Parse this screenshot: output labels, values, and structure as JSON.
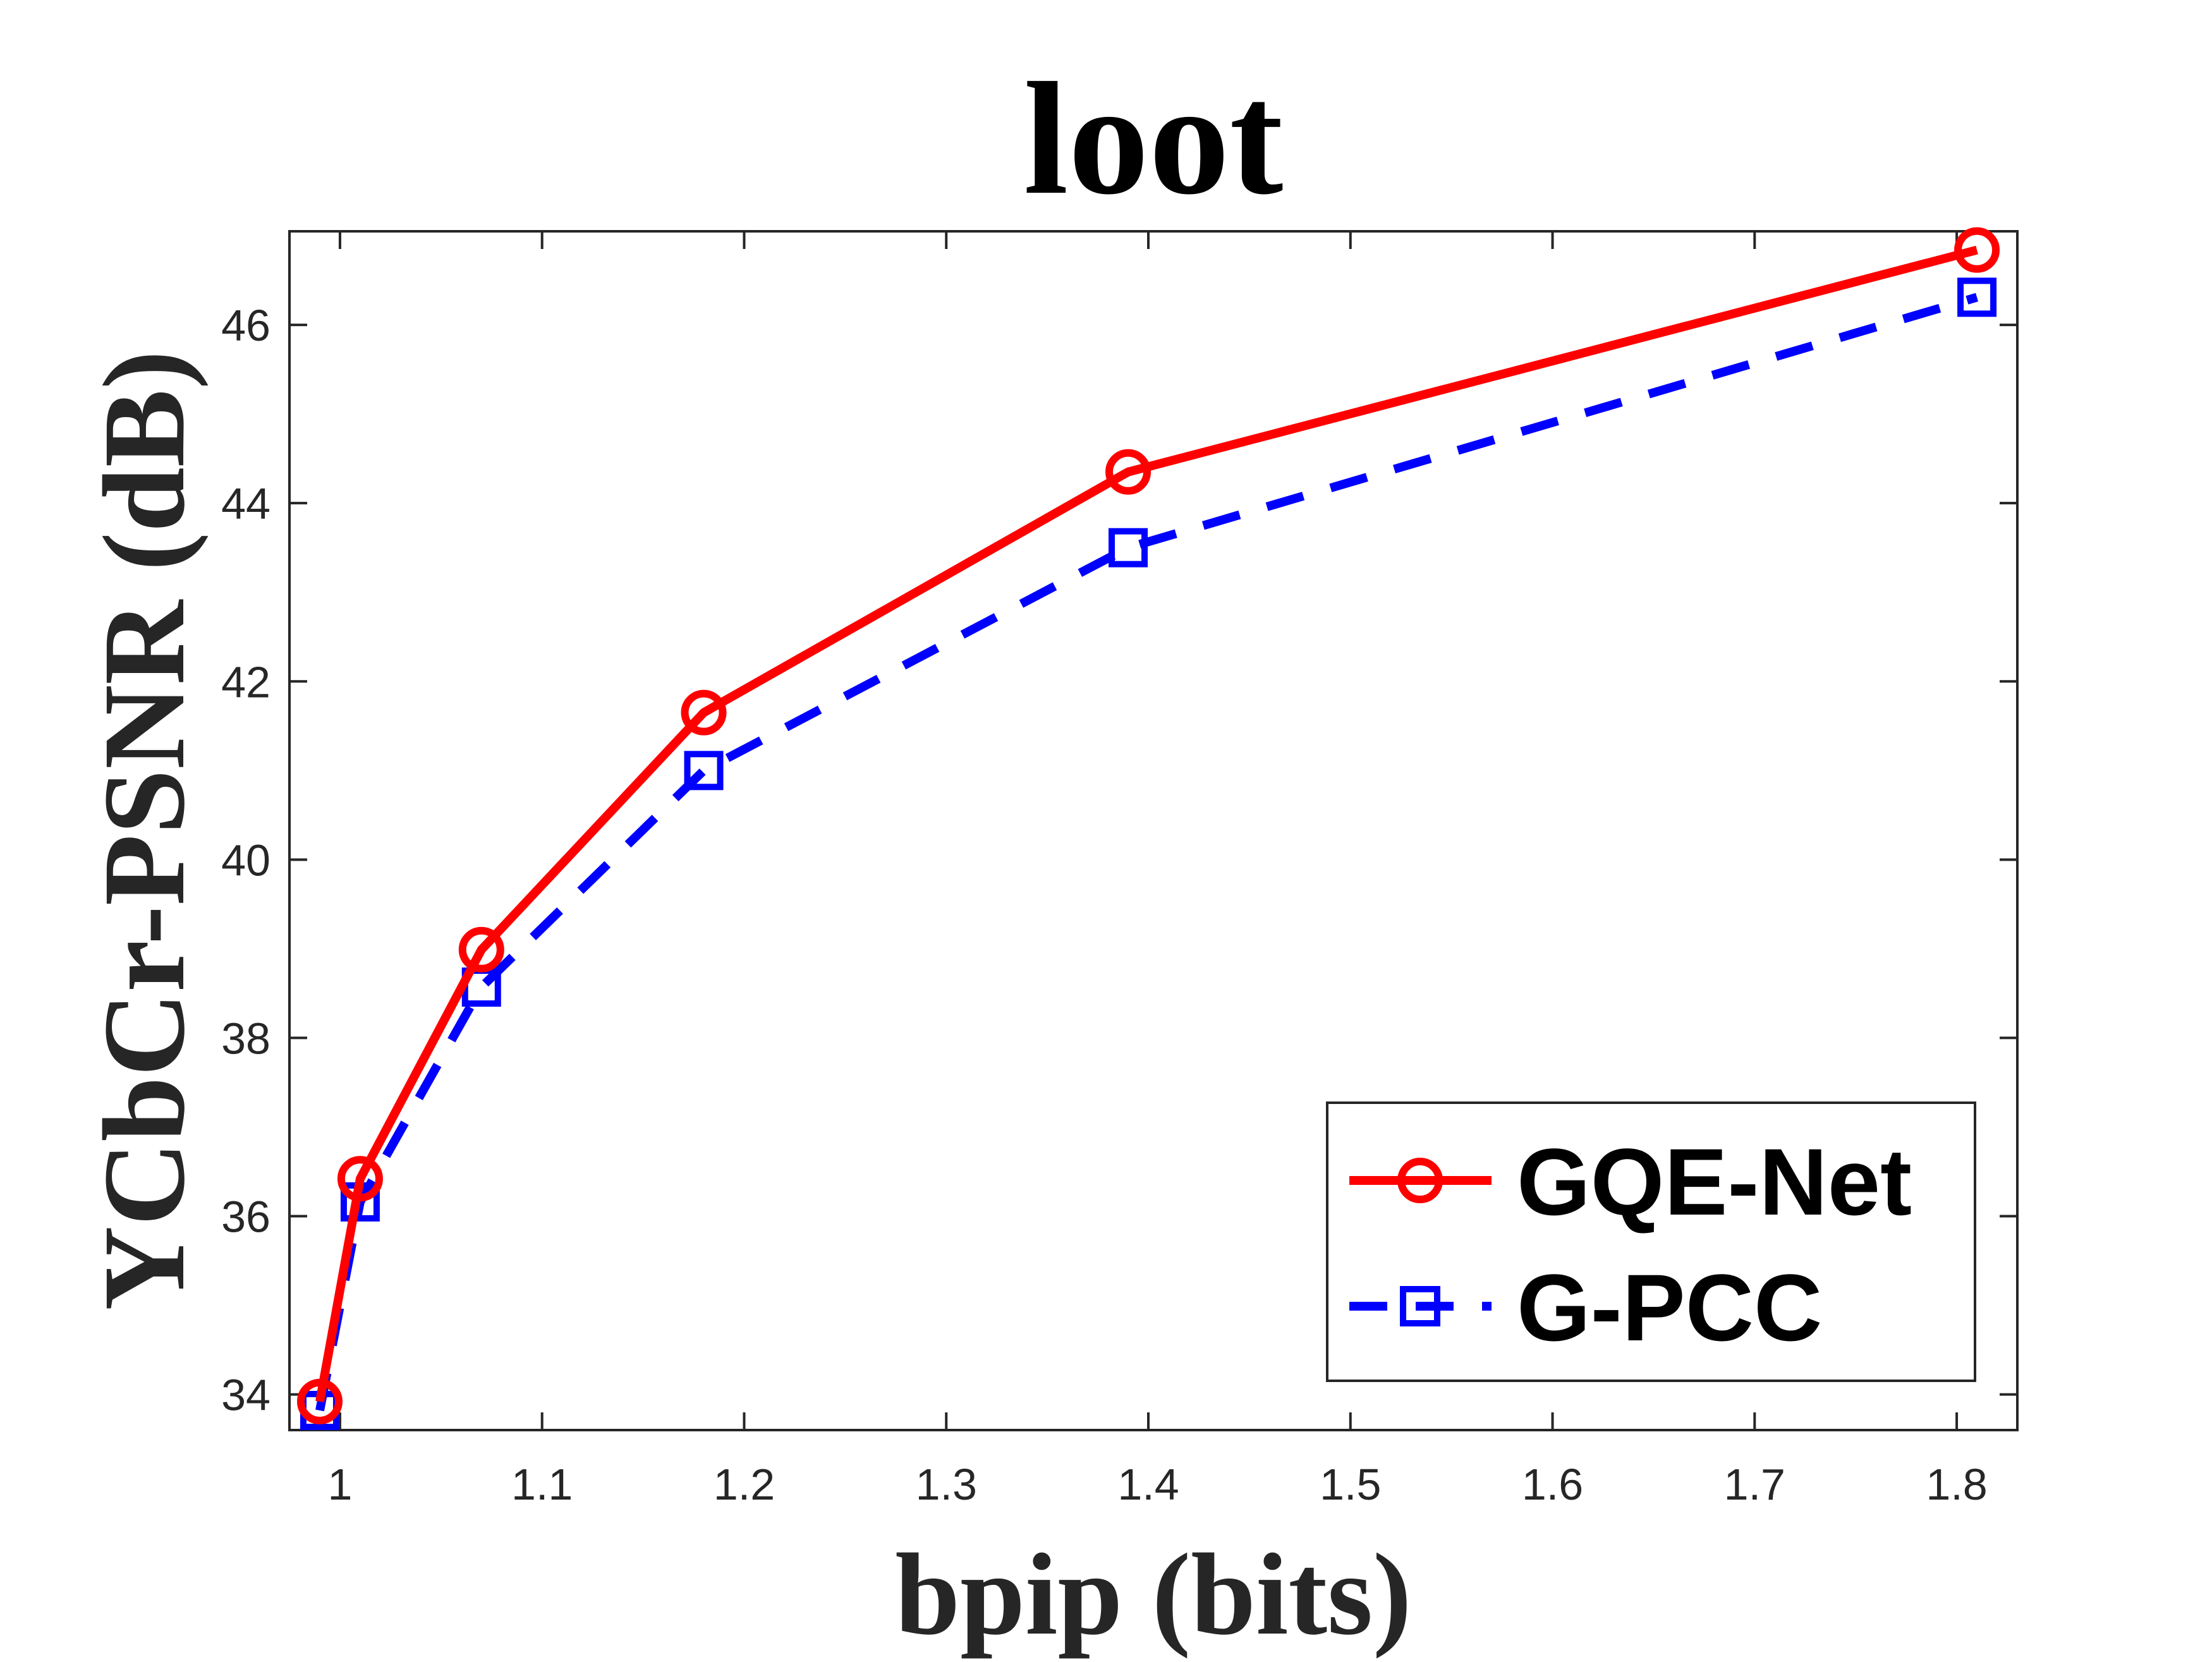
{
  "chart_data": {
    "type": "line",
    "title": "loot",
    "xlabel": "bpip (bits)",
    "ylabel": "YCbCr-PSNR (dB)",
    "xlim": [
      0.975,
      1.83
    ],
    "ylim": [
      33.6,
      47.05
    ],
    "xticks": [
      1,
      1.1,
      1.2,
      1.3,
      1.4,
      1.5,
      1.6,
      1.7,
      1.8
    ],
    "xtick_labels": [
      "1",
      "1.1",
      "1.2",
      "1.3",
      "1.4",
      "1.5",
      "1.6",
      "1.7",
      "1.8"
    ],
    "yticks": [
      34,
      36,
      38,
      40,
      42,
      44,
      46
    ],
    "ytick_labels": [
      "34",
      "36",
      "38",
      "40",
      "42",
      "44",
      "46"
    ],
    "grid": false,
    "legend_position": "bottom-right",
    "series": [
      {
        "name": "GQE-Net",
        "color": "#ff0000",
        "line_style": "solid",
        "marker": "circle",
        "x": [
          0.99,
          1.01,
          1.07,
          1.18,
          1.39,
          1.81
        ],
        "y": [
          33.92,
          36.42,
          38.99,
          41.65,
          44.35,
          46.84
        ]
      },
      {
        "name": "G-PCC",
        "color": "#0000ff",
        "line_style": "dashed",
        "marker": "square",
        "x": [
          0.99,
          1.01,
          1.07,
          1.18,
          1.39,
          1.81
        ],
        "y": [
          33.82,
          36.16,
          38.57,
          41.0,
          43.5,
          46.31
        ]
      }
    ]
  }
}
